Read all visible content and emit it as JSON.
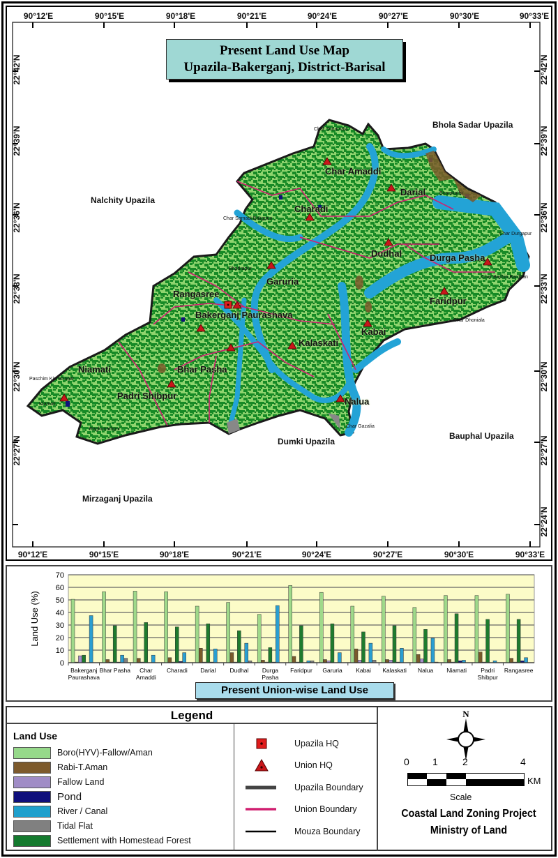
{
  "map": {
    "title_line1": "Present Land Use  Map",
    "title_line2": "Upazila-Bakerganj, District-Barisal",
    "lon_ticks": [
      "90°12'E",
      "90°15'E",
      "90°18'E",
      "90°21'E",
      "90°24'E",
      "90°27'E",
      "90°30'E",
      "90°33'E"
    ],
    "lat_ticks": [
      "22°42'N",
      "22°39'N",
      "22°36'N",
      "22°33'N",
      "22°30'N",
      "22°27'N",
      "22°24'N"
    ],
    "neighbors": {
      "bhola": "Bhola Sadar Upazila",
      "nalchity": "Nalchity Upazila",
      "dumki": "Dumki Upazila",
      "bauphal": "Bauphal Upazila",
      "mirzaganj": "Mirzaganj Upazila"
    },
    "unions": {
      "char_amaddi": "Char Amaddi",
      "darial": "Darial",
      "charadi": "Charadi",
      "dudhal": "Dudhal",
      "durga_pasha": "Durga Pasha",
      "faridpur": "Faridpur",
      "garuria": "Garuria",
      "rangasree": "Rangasree",
      "bakerganj_paurashava": "Bakerganj Paurashava",
      "kabai": "Kabai",
      "kalaskati": "Kalaskati",
      "niamati": "Niamati",
      "bhar_pasha": "Bhar Pasha",
      "padri_shibpur": "Padri Shibpur",
      "nalua": "Nalua"
    },
    "mouzas": {
      "char_sonanamala": "Char Sonamala",
      "char_samadi_baligram": "Char Samadi Baligram",
      "paschim_kishanagar": "Paschim Kishanagar",
      "niamati_m": "Niamati",
      "raghunathpur": "Raghunathpur",
      "char_gazalia": "Char Gazalia",
      "char_dhoniala": "Char Dhoniala",
      "char_durgapur": "Char Durgapur",
      "char_bashiri_bardhan": "Char Bashiri Bardhan",
      "bhadrapur": "Bhadrapur",
      "biramkathi": "Biramkathi"
    }
  },
  "chart_data": {
    "type": "bar",
    "title": "Present Union-wise Land Use",
    "xlabel": "",
    "ylabel": "Land Use (%)",
    "ylim": [
      0,
      70
    ],
    "yticks": [
      0,
      10,
      20,
      30,
      40,
      50,
      60,
      70
    ],
    "grid": true,
    "categories": [
      "Bakerganj Paurashava",
      "Bhar Pasha",
      "Char Amaddi",
      "Charadi",
      "Darial",
      "Dudhal",
      "Durga Pasha",
      "Faridpur",
      "Garuria",
      "Kabai",
      "Kalaskati",
      "Nalua",
      "Niamati",
      "Padri Shibpur",
      "Rangasree"
    ],
    "series": [
      {
        "name": "Boro(HYV)-Fallow/Aman",
        "color": "#9fd98a",
        "values": [
          50.5,
          56.5,
          57,
          56.5,
          45,
          48,
          38.5,
          61.5,
          56,
          45,
          53,
          44,
          53.5,
          53.5,
          54.5
        ]
      },
      {
        "name": "Rabi-T.Aman",
        "color": "#7a5a2a",
        "values": [
          0.5,
          2.5,
          3.5,
          4,
          11.5,
          8,
          2,
          5,
          2.5,
          11,
          2.5,
          6.5,
          2.5,
          8.5,
          3.5
        ]
      },
      {
        "name": "Fallow Land",
        "color": "#a58fc9",
        "values": [
          5.5,
          0.5,
          0.5,
          0.5,
          0.5,
          0.5,
          0.5,
          0.5,
          1.5,
          2,
          2,
          3,
          0.5,
          0.5,
          0.5
        ]
      },
      {
        "name": "Settlement with Homestead Forest",
        "color": "#1e7b2e",
        "values": [
          6,
          29.5,
          32,
          28.5,
          31,
          25.5,
          12,
          29.5,
          31,
          24.5,
          29.5,
          26.5,
          39,
          34.5,
          34.5
        ]
      },
      {
        "name": "Pond",
        "color": "#10127a",
        "values": [
          0,
          0.5,
          0,
          1,
          0.5,
          0,
          0.5,
          0,
          0,
          0,
          0.5,
          0,
          1.5,
          0,
          1.5
        ]
      },
      {
        "name": "River / Canal",
        "color": "#2a9ed1",
        "values": [
          37.5,
          6,
          6,
          8,
          11,
          15.5,
          45.5,
          1.5,
          8,
          15.5,
          11.5,
          19.5,
          2,
          1.5,
          4
        ]
      },
      {
        "name": "Tidal Flat",
        "color": "#808080",
        "values": [
          0,
          3.5,
          0,
          0,
          0,
          1.5,
          0,
          1.5,
          0,
          2,
          0,
          0.5,
          0,
          0,
          0
        ]
      }
    ]
  },
  "legend": {
    "title": "Legend",
    "land_use_heading": "Land Use",
    "land_use": [
      {
        "label": "Boro(HYV)-Fallow/Aman",
        "color": "#96d98a"
      },
      {
        "label": "Rabi-T.Aman",
        "color": "#7d5a2c"
      },
      {
        "label": "Fallow Land",
        "color": "#a08cc6"
      },
      {
        "label": "Pond",
        "color": "#0e0e7c"
      },
      {
        "label": "River / Canal",
        "color": "#1fa0cd"
      },
      {
        "label": "Tidal Flat",
        "color": "#808080"
      },
      {
        "label": "Settlement with Homestead Forest",
        "color": "#147a2e"
      }
    ],
    "symbols": [
      {
        "label": "Upazila HQ",
        "icon": "red-square-dot"
      },
      {
        "label": "Union HQ",
        "icon": "red-triangle-dot"
      },
      {
        "label": "Upazila Boundary",
        "icon": "thick-gray-line",
        "color": "#444444"
      },
      {
        "label": "Union Boundary",
        "icon": "magenta-line",
        "color": "#d02070"
      },
      {
        "label": "Mouza Boundary",
        "icon": "black-line",
        "color": "#000000"
      }
    ],
    "north": "N",
    "scale": {
      "labels": [
        "0",
        "1",
        "2",
        "4"
      ],
      "unit": "KM",
      "caption": "Scale"
    },
    "org_line1": "Coastal Land Zoning Project",
    "org_line2": "Ministry of Land"
  }
}
